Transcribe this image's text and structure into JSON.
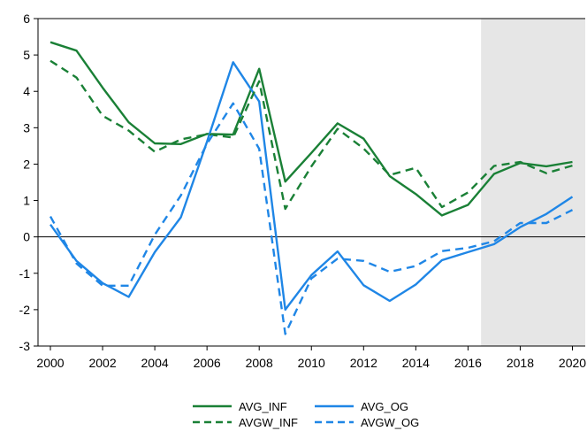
{
  "chart_data": {
    "type": "line",
    "title": "",
    "xlabel": "",
    "ylabel": "",
    "xlim": [
      2000,
      2020
    ],
    "ylim": [
      -3,
      6
    ],
    "x_ticks": [
      "2000",
      "2002",
      "2004",
      "2006",
      "2008",
      "2010",
      "2012",
      "2014",
      "2016",
      "2018",
      "2020"
    ],
    "y_ticks": [
      "6",
      "5",
      "4",
      "3",
      "2",
      "1",
      "0",
      "-1",
      "-2",
      "-3"
    ],
    "shaded_region": {
      "from": 2016.5,
      "to": 2020.5,
      "color": "#e6e6e6"
    },
    "zero_line": true,
    "grid": false,
    "legend_position": "bottom",
    "x": [
      2000,
      2001,
      2002,
      2003,
      2004,
      2005,
      2006,
      2007,
      2008,
      2009,
      2010,
      2011,
      2012,
      2013,
      2014,
      2015,
      2016,
      2017,
      2018,
      2019,
      2020
    ],
    "series": [
      {
        "name": "AVG_INF",
        "color": "#1a8036",
        "dash": "solid",
        "values": [
          5.35,
          5.12,
          4.1,
          3.15,
          2.57,
          2.55,
          2.83,
          2.81,
          4.62,
          1.52,
          2.31,
          3.12,
          2.7,
          1.67,
          1.18,
          0.59,
          0.88,
          1.73,
          2.03,
          1.94,
          2.06
        ]
      },
      {
        "name": "AVG_OG",
        "color": "#1f86e6",
        "dash": "solid",
        "values": [
          0.34,
          -0.66,
          -1.27,
          -1.65,
          -0.42,
          0.54,
          2.62,
          4.8,
          3.72,
          -2.0,
          -1.05,
          -0.4,
          -1.33,
          -1.76,
          -1.31,
          -0.64,
          -0.42,
          -0.2,
          0.27,
          0.63,
          1.1
        ]
      },
      {
        "name": "AVGW_INF",
        "color": "#1a8036",
        "dash": "dashed",
        "values": [
          4.84,
          4.38,
          3.33,
          2.92,
          2.34,
          2.68,
          2.82,
          2.73,
          4.28,
          0.77,
          1.94,
          2.97,
          2.43,
          1.7,
          1.9,
          0.82,
          1.22,
          1.95,
          2.06,
          1.75,
          1.96
        ]
      },
      {
        "name": "AVGW_OG",
        "color": "#1f86e6",
        "dash": "dashed",
        "values": [
          0.56,
          -0.73,
          -1.34,
          -1.34,
          0.06,
          1.14,
          2.56,
          3.67,
          2.42,
          -2.67,
          -1.14,
          -0.6,
          -0.66,
          -0.96,
          -0.8,
          -0.39,
          -0.3,
          -0.12,
          0.38,
          0.38,
          0.74
        ]
      }
    ]
  },
  "legend": {
    "items": [
      {
        "label": "AVG_INF",
        "color": "#1a8036",
        "dash": "solid"
      },
      {
        "label": "AVG_OG",
        "color": "#1f86e6",
        "dash": "solid"
      },
      {
        "label": "AVGW_INF",
        "color": "#1a8036",
        "dash": "dashed"
      },
      {
        "label": "AVGW_OG",
        "color": "#1f86e6",
        "dash": "dashed"
      }
    ]
  }
}
